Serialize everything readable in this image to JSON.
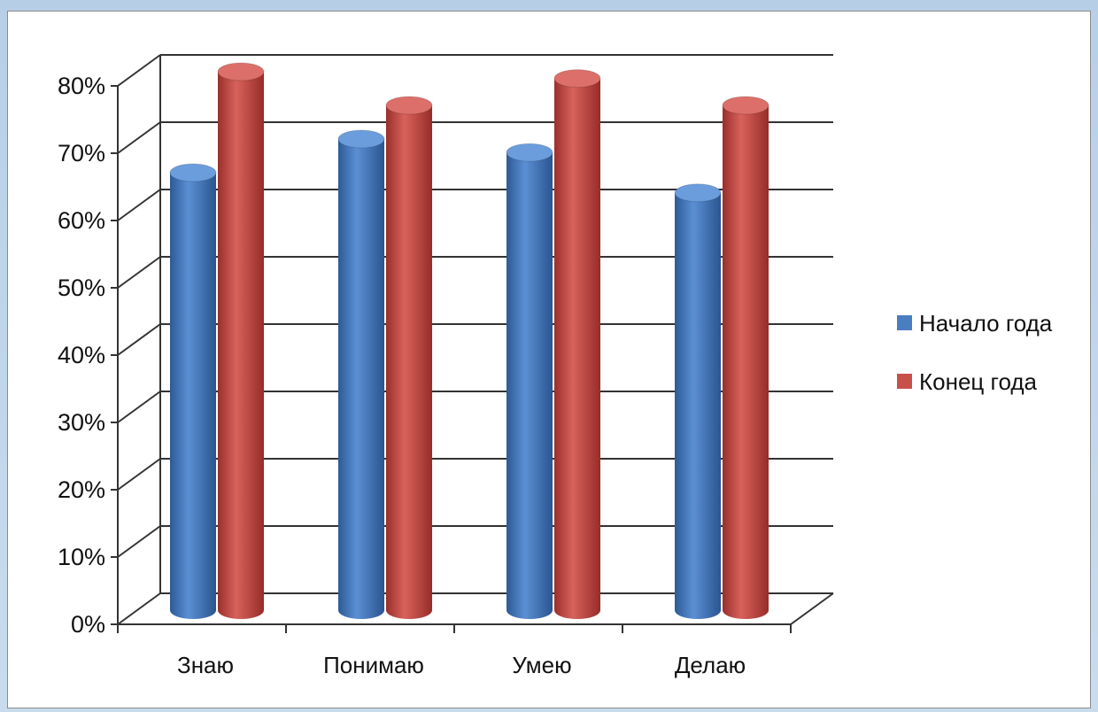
{
  "chart_data": {
    "type": "bar",
    "categories": [
      "Знаю",
      "Понимаю",
      "Умею",
      "Делаю"
    ],
    "series": [
      {
        "name": "Начало года",
        "values": [
          65,
          70,
          68,
          62
        ],
        "color": "#4a7ec2"
      },
      {
        "name": "Конец года",
        "values": [
          80,
          75,
          79,
          75
        ],
        "color": "#c8504b"
      }
    ],
    "yticks": [
      "0%",
      "10%",
      "20%",
      "30%",
      "40%",
      "50%",
      "60%",
      "70%",
      "80%"
    ],
    "ylim": [
      0,
      80
    ],
    "grid": true,
    "style": "3d-cylinder",
    "legend_position": "right"
  }
}
